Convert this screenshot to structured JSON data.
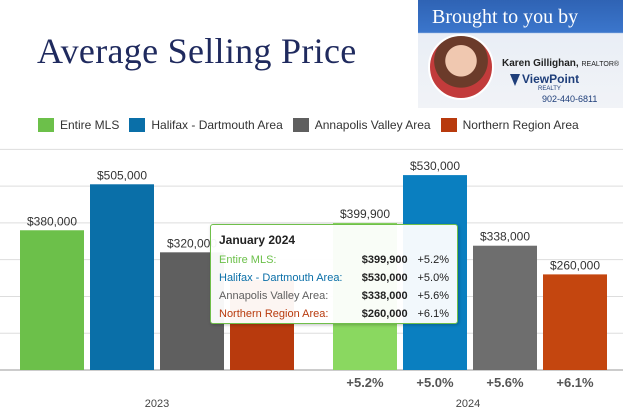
{
  "title": "Average Selling Price",
  "banner": {
    "headline": "Brought to you by",
    "agent_name": "Karen Gillighan,",
    "agent_title": "REALTOR®",
    "brokerage": "ViewPoint",
    "brokerage_sub": "REALTY",
    "phone": "902-440-6811"
  },
  "legend": [
    {
      "label": "Entire MLS",
      "color": "#6cc04a"
    },
    {
      "label": "Halifax - Dartmouth Area",
      "color": "#0a6fa8"
    },
    {
      "label": "Annapolis Valley Area",
      "color": "#5f5f5f"
    },
    {
      "label": "Northern Region Area",
      "color": "#b83a0d"
    }
  ],
  "tooltip": {
    "title": "January 2024",
    "rows": [
      {
        "label": "Entire MLS:",
        "value": "$399,900",
        "change": "+5.2%",
        "color": "#6cc04a"
      },
      {
        "label": "Halifax - Dartmouth Area:",
        "value": "$530,000",
        "change": "+5.0%",
        "color": "#0a6fa8"
      },
      {
        "label": "Annapolis Valley Area:",
        "value": "$338,000",
        "change": "+5.6%",
        "color": "#5f5f5f"
      },
      {
        "label": "Northern Region Area:",
        "value": "$260,000",
        "change": "+6.1%",
        "color": "#b83a0d"
      }
    ]
  },
  "chart_data": {
    "type": "bar",
    "categories": [
      "2023",
      "2024"
    ],
    "series": [
      {
        "name": "Entire MLS",
        "values": [
          380000,
          399900
        ],
        "labels": [
          "$380,000",
          "$399,900"
        ],
        "color": "#6cc04a",
        "highlight": "#8ad860"
      },
      {
        "name": "Halifax - Dartmouth Area",
        "values": [
          505000,
          530000
        ],
        "labels": [
          "$505,000",
          "$530,000"
        ],
        "color": "#0a6fa8",
        "highlight": "#0a7fc0"
      },
      {
        "name": "Annapolis Valley Area",
        "values": [
          320000,
          338000
        ],
        "labels": [
          "$320,000",
          "$338,000"
        ],
        "color": "#5f5f5f",
        "highlight": "#6e6e6e"
      },
      {
        "name": "Northern Region Area",
        "values": [
          245000,
          260000
        ],
        "labels": [
          "",
          "$260,000"
        ],
        "color": "#b83a0d",
        "highlight": "#c4460f"
      }
    ],
    "change_labels": [
      "+5.2%",
      "+5.0%",
      "+5.6%",
      "+6.1%"
    ],
    "ylim": [
      0,
      620000
    ],
    "grid": true
  }
}
